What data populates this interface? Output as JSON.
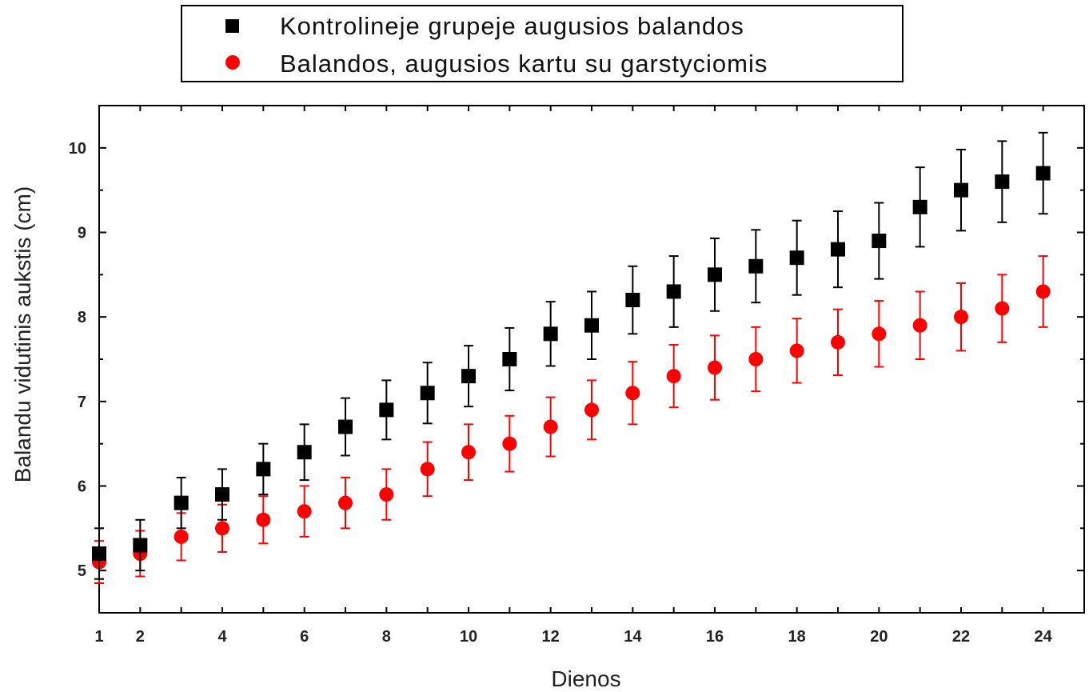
{
  "chart_data": {
    "type": "scatter",
    "x": [
      1,
      2,
      3,
      4,
      5,
      6,
      7,
      8,
      9,
      10,
      11,
      12,
      13,
      14,
      15,
      16,
      17,
      18,
      19,
      20,
      21,
      22,
      23,
      24
    ],
    "series": [
      {
        "name": "Kontrolineje grupeje augusios balandos",
        "color": "#000000",
        "marker": "square",
        "values": [
          5.2,
          5.3,
          5.8,
          5.9,
          6.2,
          6.4,
          6.7,
          6.9,
          7.1,
          7.3,
          7.5,
          7.8,
          7.9,
          8.2,
          8.3,
          8.5,
          8.6,
          8.7,
          8.8,
          8.9,
          9.3,
          9.5,
          9.6,
          9.7
        ],
        "errors": [
          0.3,
          0.3,
          0.3,
          0.3,
          0.3,
          0.33,
          0.34,
          0.35,
          0.36,
          0.36,
          0.37,
          0.38,
          0.4,
          0.4,
          0.42,
          0.43,
          0.43,
          0.44,
          0.45,
          0.45,
          0.47,
          0.48,
          0.48,
          0.48
        ]
      },
      {
        "name": "Balandos, augusios kartu su garstyciomis",
        "color": "#ff0000",
        "marker": "circle",
        "values": [
          5.1,
          5.2,
          5.4,
          5.5,
          5.6,
          5.7,
          5.8,
          5.9,
          6.2,
          6.4,
          6.5,
          6.7,
          6.9,
          7.1,
          7.3,
          7.4,
          7.5,
          7.6,
          7.7,
          7.8,
          7.9,
          8.0,
          8.1,
          8.3
        ],
        "errors": [
          0.25,
          0.27,
          0.28,
          0.28,
          0.28,
          0.3,
          0.3,
          0.3,
          0.32,
          0.33,
          0.33,
          0.35,
          0.35,
          0.37,
          0.37,
          0.38,
          0.38,
          0.38,
          0.39,
          0.39,
          0.4,
          0.4,
          0.4,
          0.42
        ]
      }
    ],
    "xlabel": "Dienos",
    "ylabel": "Balandu vidutinis aukstis (cm)",
    "xlim": [
      1,
      25
    ],
    "ylim": [
      4.5,
      10.5
    ],
    "xticks": [
      1,
      2,
      4,
      6,
      8,
      10,
      12,
      14,
      16,
      18,
      20,
      22,
      24
    ],
    "yticks": [
      5,
      6,
      7,
      8,
      9,
      10
    ],
    "grid": false,
    "legend_position": "top"
  }
}
